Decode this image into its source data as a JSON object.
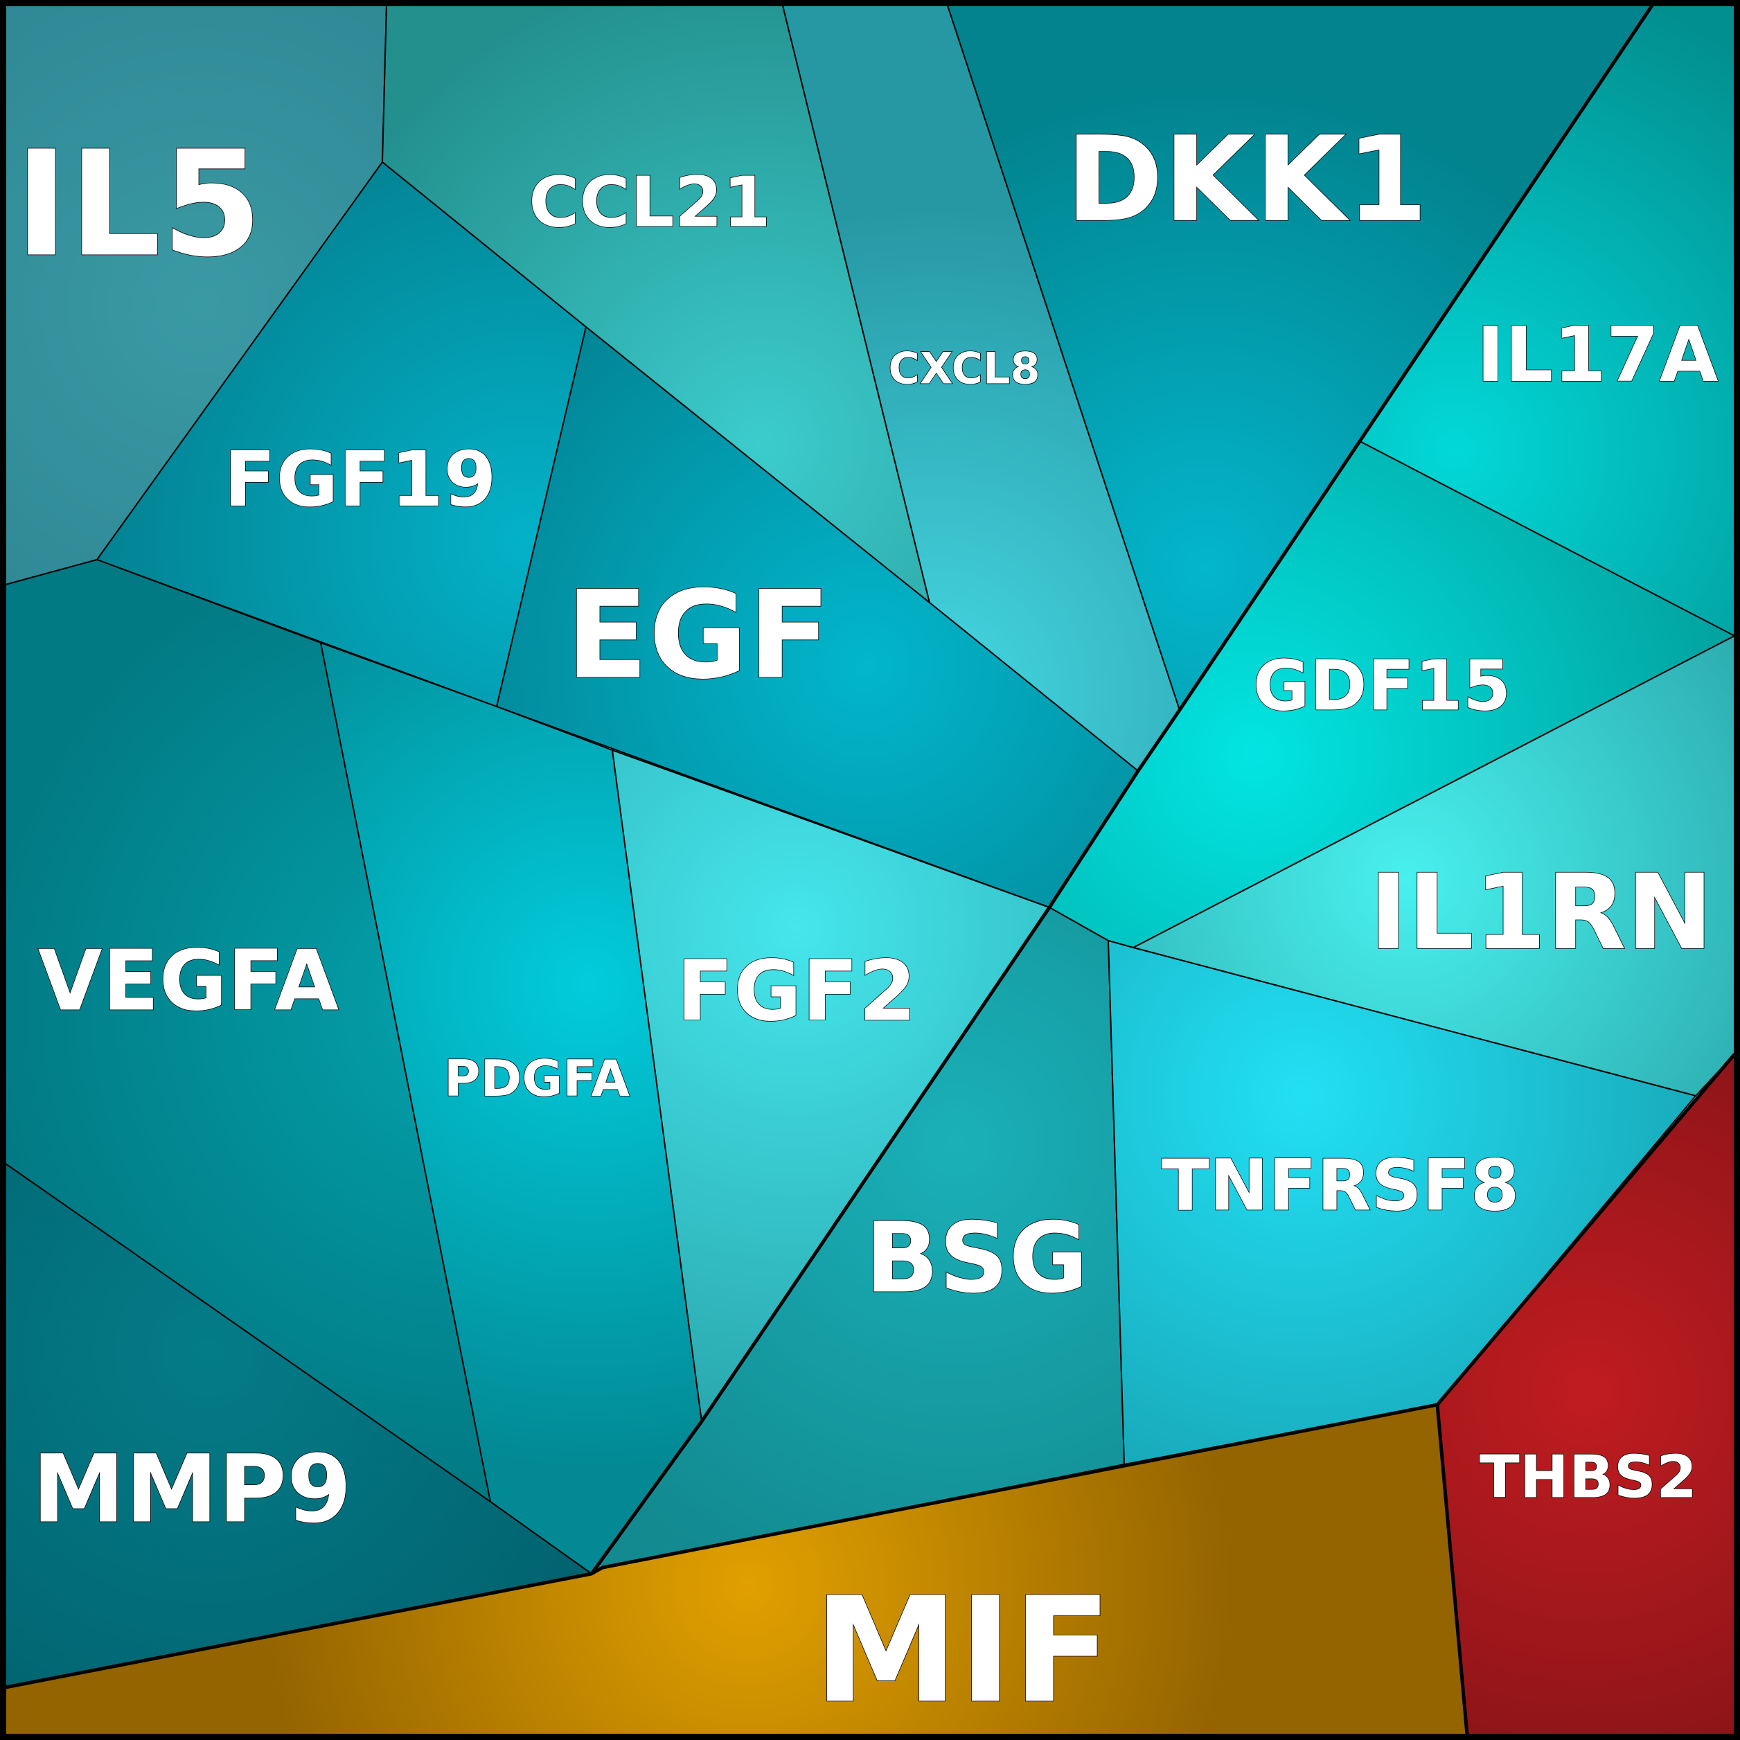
{
  "chart_data": {
    "type": "voronoi-treemap",
    "colors": {
      "cluster_teal": "#0aa3b2",
      "MIF": "#c98a00",
      "THBS2": "#a01418"
    },
    "cells": [
      {
        "label": "IL5",
        "group": "teal"
      },
      {
        "label": "CCL21",
        "group": "teal"
      },
      {
        "label": "CXCL8",
        "group": "teal"
      },
      {
        "label": "DKK1",
        "group": "teal"
      },
      {
        "label": "IL17A",
        "group": "teal"
      },
      {
        "label": "FGF19",
        "group": "teal"
      },
      {
        "label": "EGF",
        "group": "teal"
      },
      {
        "label": "GDF15",
        "group": "teal"
      },
      {
        "label": "IL1RN",
        "group": "teal"
      },
      {
        "label": "VEGFA",
        "group": "teal"
      },
      {
        "label": "PDGFA",
        "group": "teal"
      },
      {
        "label": "FGF2",
        "group": "teal"
      },
      {
        "label": "BSG",
        "group": "teal"
      },
      {
        "label": "TNFRSF8",
        "group": "teal"
      },
      {
        "label": "MMP9",
        "group": "teal"
      },
      {
        "label": "MIF",
        "group": "gold"
      },
      {
        "label": "THBS2",
        "group": "red"
      }
    ]
  }
}
